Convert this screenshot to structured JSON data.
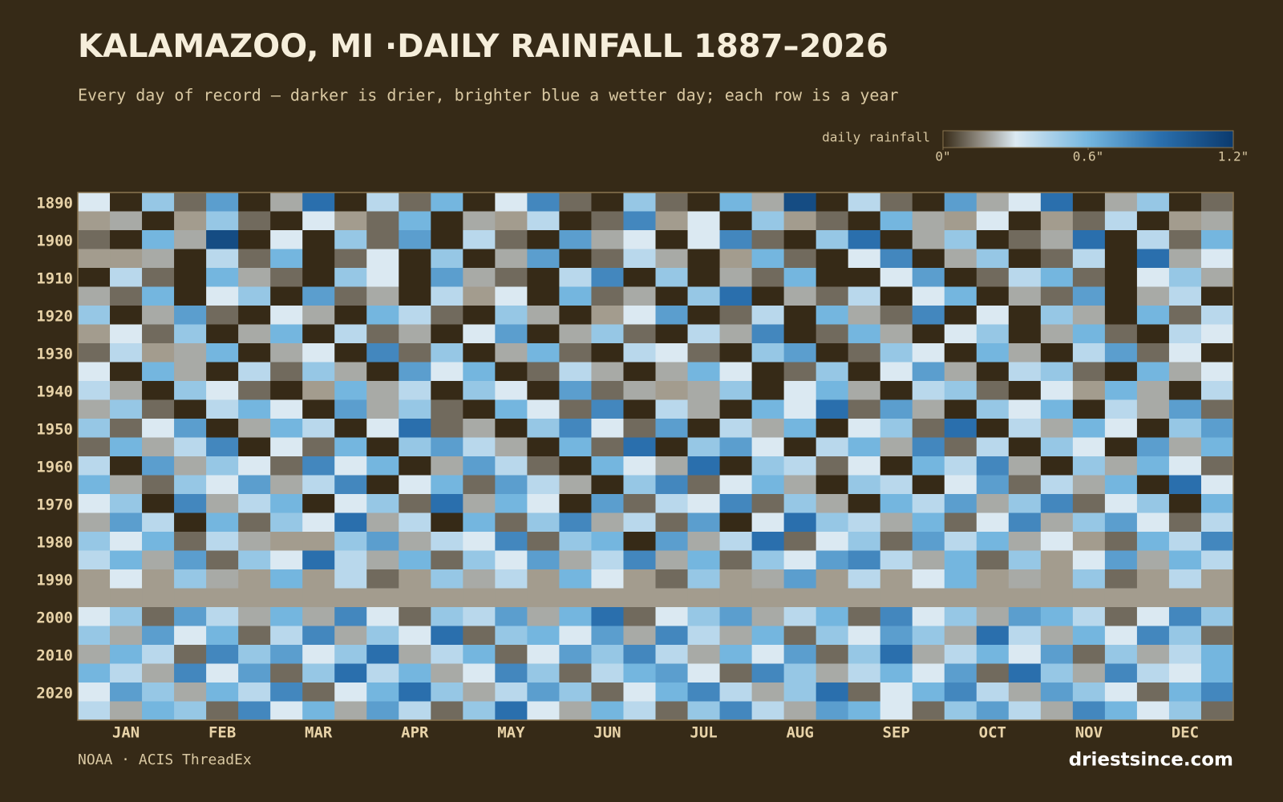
{
  "chart_data": {
    "type": "heatmap",
    "title": "KALAMAZOO, MI ·DAILY RAINFALL 1887–2026",
    "subtitle": "Every day of record — darker is drier, brighter blue a wetter day; each row is a year",
    "colorbar_label": "daily rainfall",
    "clim": [
      0,
      1.2
    ],
    "colorbar_ticks": [
      {
        "value": 0,
        "label": "0\""
      },
      {
        "value": 0.6,
        "label": "0.6\""
      },
      {
        "value": 1.2,
        "label": "1.2\""
      }
    ],
    "colorscale": [
      [
        0,
        "#362a17"
      ],
      [
        0.15,
        "#8f8a80"
      ],
      [
        0.3,
        "#dbe9f2"
      ],
      [
        0.6,
        "#74b6df"
      ],
      [
        0.9,
        "#2a6fad"
      ],
      [
        1.2,
        "#0b3a6e"
      ]
    ],
    "missing_color": "#a39c8e",
    "categories": [
      "JAN",
      "FEB",
      "MAR",
      "APR",
      "MAY",
      "JUN",
      "JUL",
      "AUG",
      "SEP",
      "OCT",
      "NOV",
      "DEC"
    ],
    "ylim": [
      1887,
      2027
    ],
    "yticks": [
      1890,
      1900,
      1910,
      1920,
      1930,
      1940,
      1950,
      1960,
      1970,
      1980,
      1990,
      2000,
      2010,
      2020
    ],
    "rows": [
      {
        "year": 1887,
        "values": [
          0.3,
          0,
          0.5,
          0.1,
          0.7,
          0,
          0.2,
          0.9,
          0,
          0.4,
          0.1,
          0.6,
          0,
          0.3,
          0.8,
          0.1,
          0,
          0.5,
          0.1,
          0,
          0.6,
          0.2,
          1.1,
          0,
          0.4,
          0.1,
          0,
          0.7,
          0.2,
          0.3,
          0.9,
          0,
          0.2,
          0.5,
          0,
          0.1
        ]
      },
      {
        "year": 1892,
        "values": [
          null,
          0.2,
          0,
          null,
          0.5,
          0.1,
          0,
          0.3,
          null,
          0.1,
          0.6,
          0,
          0.2,
          null,
          0.4,
          0,
          0.1,
          0.8,
          null,
          0.3,
          0,
          0.5,
          null,
          0.1,
          0,
          0.6,
          0.2,
          null,
          0.3,
          0,
          null,
          0.1,
          0.4,
          0,
          null,
          0.2
        ]
      },
      {
        "year": 1897,
        "values": [
          0.1,
          0,
          0.6,
          0.2,
          1.1,
          0,
          0.3,
          0,
          0.5,
          0.1,
          0.7,
          0,
          0.4,
          0.1,
          0,
          0.7,
          0.2,
          0.3,
          0,
          0.3,
          0.8,
          0.1,
          0,
          0.5,
          0.9,
          0,
          0.2,
          0.5,
          0,
          0.1,
          0.2,
          0.9,
          0,
          0.4,
          0.1,
          0.6
        ]
      },
      {
        "year": 1902,
        "values": [
          null,
          null,
          0.2,
          0,
          0.4,
          0.1,
          0.6,
          0,
          0.1,
          0.3,
          0,
          0.5,
          0,
          0.2,
          0.7,
          0,
          0.1,
          0.4,
          0.2,
          0,
          null,
          0.6,
          0.1,
          0,
          0.3,
          0.8,
          0,
          0.2,
          0.5,
          0,
          0.1,
          0.4,
          0,
          0.9,
          0.2,
          0.3
        ]
      },
      {
        "year": 1907,
        "values": [
          0,
          0.4,
          0.1,
          0,
          0.6,
          0.2,
          0.1,
          0,
          0.5,
          0.3,
          0,
          0.7,
          0.2,
          0.1,
          0,
          0.4,
          0.8,
          0,
          0.5,
          0,
          0.2,
          0.1,
          0.6,
          0,
          0,
          0.3,
          0.7,
          0,
          0.1,
          0.4,
          0.6,
          0.1,
          0,
          0.3,
          0.5,
          0.2
        ]
      },
      {
        "year": 1912,
        "values": [
          0.2,
          0.1,
          0.6,
          0,
          0.3,
          0.5,
          0,
          0.7,
          0.1,
          0.2,
          0,
          0.4,
          null,
          0.3,
          0,
          0.6,
          0.1,
          0.2,
          0,
          0.5,
          0.9,
          0,
          0.2,
          0.1,
          0.4,
          0,
          0.3,
          0.6,
          0,
          0.2,
          0.1,
          0.7,
          0,
          0.2,
          0.4,
          0
        ]
      },
      {
        "year": 1917,
        "values": [
          0.5,
          0,
          0.2,
          0.7,
          0.1,
          0,
          0.3,
          0.2,
          0,
          0.6,
          0.4,
          0.1,
          0,
          0.5,
          0.2,
          0,
          null,
          0.3,
          0.7,
          0,
          0.1,
          0.4,
          0,
          0.6,
          0.2,
          0.1,
          0.8,
          0,
          0.3,
          0,
          0.5,
          0.2,
          0,
          0.6,
          0.1,
          0.4
        ]
      },
      {
        "year": 1922,
        "values": [
          null,
          0.3,
          0.1,
          0.5,
          0,
          0.2,
          0.6,
          0,
          0.4,
          0.1,
          0.2,
          0,
          0.3,
          0.7,
          0,
          0.2,
          0.5,
          0.1,
          0,
          0.4,
          0.2,
          0.8,
          0,
          0.1,
          0.6,
          0.2,
          0,
          0.3,
          0.5,
          0,
          0.2,
          0.6,
          0.1,
          0,
          0.4,
          0.3
        ]
      },
      {
        "year": 1927,
        "values": [
          0.1,
          0.4,
          null,
          0.2,
          0.6,
          0,
          0.2,
          0.3,
          0,
          0.8,
          0.1,
          0.5,
          0,
          0.2,
          0.6,
          0.1,
          0,
          0.4,
          0.3,
          0.1,
          0,
          0.5,
          0.7,
          0,
          0.1,
          0.5,
          0.3,
          0,
          0.6,
          0.2,
          0,
          0.4,
          0.7,
          0.1,
          0.3,
          0
        ]
      },
      {
        "year": 1932,
        "values": [
          0.3,
          0,
          0.6,
          0.2,
          0,
          0.4,
          0.1,
          0.5,
          0.2,
          0,
          0.7,
          0.3,
          0.6,
          0,
          0.1,
          0.4,
          0.2,
          0,
          0.2,
          0.6,
          0.3,
          0,
          0.1,
          0.5,
          0,
          0.3,
          0.7,
          0.2,
          0,
          0.4,
          0.5,
          0.1,
          0,
          0.6,
          0.2,
          0.3
        ]
      },
      {
        "year": 1937,
        "values": [
          0.4,
          0.2,
          0,
          0.5,
          0.3,
          0.1,
          0,
          null,
          0.6,
          0.2,
          0.4,
          0,
          0.5,
          0.3,
          0,
          0.7,
          0.1,
          0.2,
          null,
          0.2,
          0.5,
          0,
          0.3,
          0.6,
          0.2,
          0,
          0.4,
          0.5,
          0.1,
          0,
          0.3,
          null,
          0.6,
          0.2,
          0,
          0.4
        ]
      },
      {
        "year": 1942,
        "values": [
          0.2,
          0.5,
          0.1,
          0,
          0.4,
          0.6,
          0.3,
          0,
          0.7,
          0.2,
          0.5,
          0.1,
          0,
          0.6,
          0.3,
          0.1,
          0.8,
          0,
          0.4,
          0.2,
          0,
          0.6,
          0.3,
          0.9,
          0.1,
          0.7,
          0.2,
          0,
          0.5,
          0.3,
          0.6,
          0,
          0.4,
          0.2,
          0.7,
          0.1
        ]
      },
      {
        "year": 1947,
        "values": [
          0.5,
          0.1,
          0.3,
          0.7,
          0,
          0.2,
          0.6,
          0.4,
          0,
          0.3,
          0.9,
          0.1,
          0.2,
          0,
          0.5,
          0.8,
          0.3,
          0.1,
          0.7,
          0,
          0.4,
          0.2,
          0.6,
          0,
          0.3,
          0.5,
          0.1,
          0.9,
          0,
          0.4,
          0.2,
          0.6,
          0.3,
          0,
          0.5,
          0.7
        ]
      },
      {
        "year": 1952,
        "values": [
          0.1,
          0.6,
          0.2,
          0.4,
          0.8,
          0,
          0.3,
          0.1,
          0.6,
          0,
          0.5,
          0.7,
          0.4,
          0.2,
          0,
          0.6,
          0.1,
          0.9,
          0,
          0.5,
          0.7,
          0.3,
          0,
          0.4,
          0.6,
          0.2,
          0.8,
          0.1,
          0.4,
          0,
          0.5,
          0.3,
          0,
          0.7,
          0.2,
          0.6
        ]
      },
      {
        "year": 1957,
        "values": [
          0.4,
          0,
          0.7,
          0.2,
          0.5,
          0.3,
          0.1,
          0.8,
          0.3,
          0.6,
          0,
          0.2,
          0.7,
          0.4,
          0.1,
          0,
          0.6,
          0.3,
          0.2,
          0.9,
          0,
          0.5,
          0.4,
          0.1,
          0.3,
          0,
          0.6,
          0.4,
          0.8,
          0.2,
          0,
          0.5,
          0.2,
          0.6,
          0.3,
          0.1
        ]
      },
      {
        "year": 1962,
        "values": [
          0.6,
          0.2,
          0.1,
          0.5,
          0.3,
          0.7,
          0.2,
          0.4,
          0.8,
          0,
          0.3,
          0.6,
          0.1,
          0.7,
          0.4,
          0.2,
          0,
          0.5,
          0.8,
          0.1,
          0.3,
          0.6,
          0.2,
          0,
          0.5,
          0.4,
          0,
          0.3,
          0.7,
          0.1,
          0.4,
          0.2,
          0.6,
          0,
          0.9,
          0.3
        ]
      },
      {
        "year": 1967,
        "values": [
          0.3,
          0.5,
          0,
          0.8,
          0.2,
          0.4,
          0.6,
          0,
          0.3,
          0.5,
          0.1,
          0.9,
          0.2,
          0.6,
          0.3,
          0,
          0.7,
          0.1,
          0.4,
          0.3,
          0.8,
          0.1,
          0.5,
          0.2,
          0,
          0.6,
          0.4,
          0.7,
          0.2,
          0.5,
          0.8,
          0.1,
          0.3,
          0.5,
          0,
          0.6
        ]
      },
      {
        "year": 1972,
        "values": [
          0.2,
          0.7,
          0.4,
          0,
          0.6,
          0.1,
          0.5,
          0.3,
          0.9,
          0.2,
          0.4,
          0,
          0.6,
          0.1,
          0.5,
          0.8,
          0.2,
          0.4,
          0.1,
          0.7,
          0,
          0.3,
          0.9,
          0.5,
          0.4,
          0.2,
          0.6,
          0.1,
          0.3,
          0.8,
          0.2,
          0.5,
          0.7,
          0.3,
          0.1,
          0.4
        ]
      },
      {
        "year": 1977,
        "values": [
          0.5,
          0.3,
          0.6,
          0.1,
          0.4,
          0.2,
          null,
          null,
          0.5,
          0.7,
          0.2,
          0.4,
          0.3,
          0.8,
          0.1,
          0.5,
          0.6,
          0,
          0.7,
          0.2,
          0.4,
          0.9,
          0.1,
          0.3,
          0.5,
          0.1,
          0.7,
          0.4,
          0.6,
          0.2,
          0.3,
          null,
          0.1,
          0.6,
          0.4,
          0.8
        ]
      },
      {
        "year": 1982,
        "values": [
          0.4,
          0.6,
          0.2,
          0.7,
          0.1,
          0.5,
          0.3,
          0.9,
          0.4,
          0.2,
          0.6,
          0.1,
          0.5,
          0.3,
          0.7,
          0.2,
          0.4,
          0.8,
          0.2,
          0.6,
          0.1,
          0.5,
          0.3,
          0.7,
          0.8,
          0.4,
          0.2,
          0.6,
          0.1,
          0.5,
          null,
          0.3,
          0.7,
          0.2,
          0.6,
          0.4
        ]
      },
      {
        "year": 1987,
        "values": [
          null,
          0.3,
          null,
          0.5,
          0.2,
          null,
          0.6,
          null,
          0.4,
          0.1,
          null,
          0.5,
          0.2,
          0.4,
          null,
          0.6,
          0.3,
          null,
          0.1,
          0.5,
          null,
          0.2,
          0.7,
          null,
          0.4,
          null,
          0.3,
          0.6,
          null,
          0.2,
          null,
          0.5,
          0.1,
          null,
          0.4,
          null
        ]
      },
      {
        "year": 1992,
        "values": [
          null,
          null,
          null,
          null,
          null,
          null,
          null,
          null,
          null,
          null,
          null,
          null,
          null,
          null,
          null,
          null,
          null,
          null,
          null,
          null,
          null,
          null,
          null,
          null,
          null,
          null,
          null,
          null,
          null,
          null,
          null,
          null,
          null,
          null,
          null,
          null
        ]
      },
      {
        "year": 1997,
        "values": [
          0.3,
          0.5,
          0.1,
          0.7,
          0.4,
          0.2,
          0.6,
          0.2,
          0.8,
          0.3,
          0.1,
          0.5,
          0.4,
          0.7,
          0.2,
          0.6,
          0.9,
          0.1,
          0.3,
          0.5,
          0.7,
          0.2,
          0.4,
          0.6,
          0.1,
          0.8,
          0.3,
          0.5,
          0.2,
          0.7,
          0.6,
          0.4,
          0.1,
          0.3,
          0.8,
          0.5
        ]
      },
      {
        "year": 2002,
        "values": [
          0.5,
          0.2,
          0.7,
          0.3,
          0.6,
          0.1,
          0.4,
          0.8,
          0.2,
          0.5,
          0.3,
          0.9,
          0.1,
          0.5,
          0.6,
          0.3,
          0.7,
          0.2,
          0.8,
          0.4,
          0.2,
          0.6,
          0.1,
          0.5,
          0.3,
          0.7,
          0.5,
          0.2,
          0.9,
          0.4,
          0.2,
          0.6,
          0.3,
          0.8,
          0.5,
          0.1
        ]
      },
      {
        "year": 2007,
        "values": [
          0.2,
          0.6,
          0.4,
          0.1,
          0.8,
          0.5,
          0.7,
          0.3,
          0.5,
          0.9,
          0.2,
          0.4,
          0.6,
          0.1,
          0.3,
          0.7,
          0.5,
          0.8,
          0.4,
          0.2,
          0.6,
          0.3,
          0.7,
          0.1,
          0.5,
          0.9,
          0.2,
          0.4,
          0.6,
          0.3,
          0.7,
          0.1,
          0.5,
          0.2,
          0.4,
          0.6
        ]
      },
      {
        "year": 2012,
        "values": [
          0.6,
          0.4,
          0.2,
          0.8,
          0.3,
          0.7,
          0.1,
          0.5,
          0.9,
          0.4,
          0.6,
          0.2,
          0.3,
          0.8,
          0.5,
          0.1,
          0.4,
          0.6,
          0.7,
          0.3,
          0.1,
          0.8,
          0.5,
          0.2,
          0.4,
          0.6,
          0.3,
          0.7,
          0.1,
          0.9,
          0.5,
          0.2,
          0.8,
          0.4,
          0.3,
          0.6
        ]
      },
      {
        "year": 2017,
        "values": [
          0.3,
          0.7,
          0.5,
          0.2,
          0.6,
          0.4,
          0.8,
          0.1,
          0.3,
          0.6,
          0.9,
          0.5,
          0.2,
          0.4,
          0.7,
          0.5,
          0.1,
          0.3,
          0.6,
          0.8,
          0.4,
          0.2,
          0.5,
          0.9,
          0.1,
          0.3,
          0.6,
          0.8,
          0.4,
          0.2,
          0.7,
          0.5,
          0.3,
          0.1,
          0.6,
          0.8
        ]
      },
      {
        "year": 2022,
        "values": [
          0.4,
          0.2,
          0.6,
          0.5,
          0.1,
          0.8,
          0.3,
          0.6,
          0.2,
          0.7,
          0.4,
          0.1,
          0.5,
          0.9,
          0.3,
          0.2,
          0.6,
          0.4,
          0.1,
          0.5,
          0.8,
          0.4,
          0.2,
          0.7,
          0.6,
          0.3,
          0.1,
          0.5,
          0.7,
          0.4,
          0.2,
          0.8,
          0.6,
          0.3,
          0.5,
          0.1
        ]
      }
    ],
    "source": "NOAA · ACIS ThreadEx",
    "brand": "driestsince.com"
  }
}
